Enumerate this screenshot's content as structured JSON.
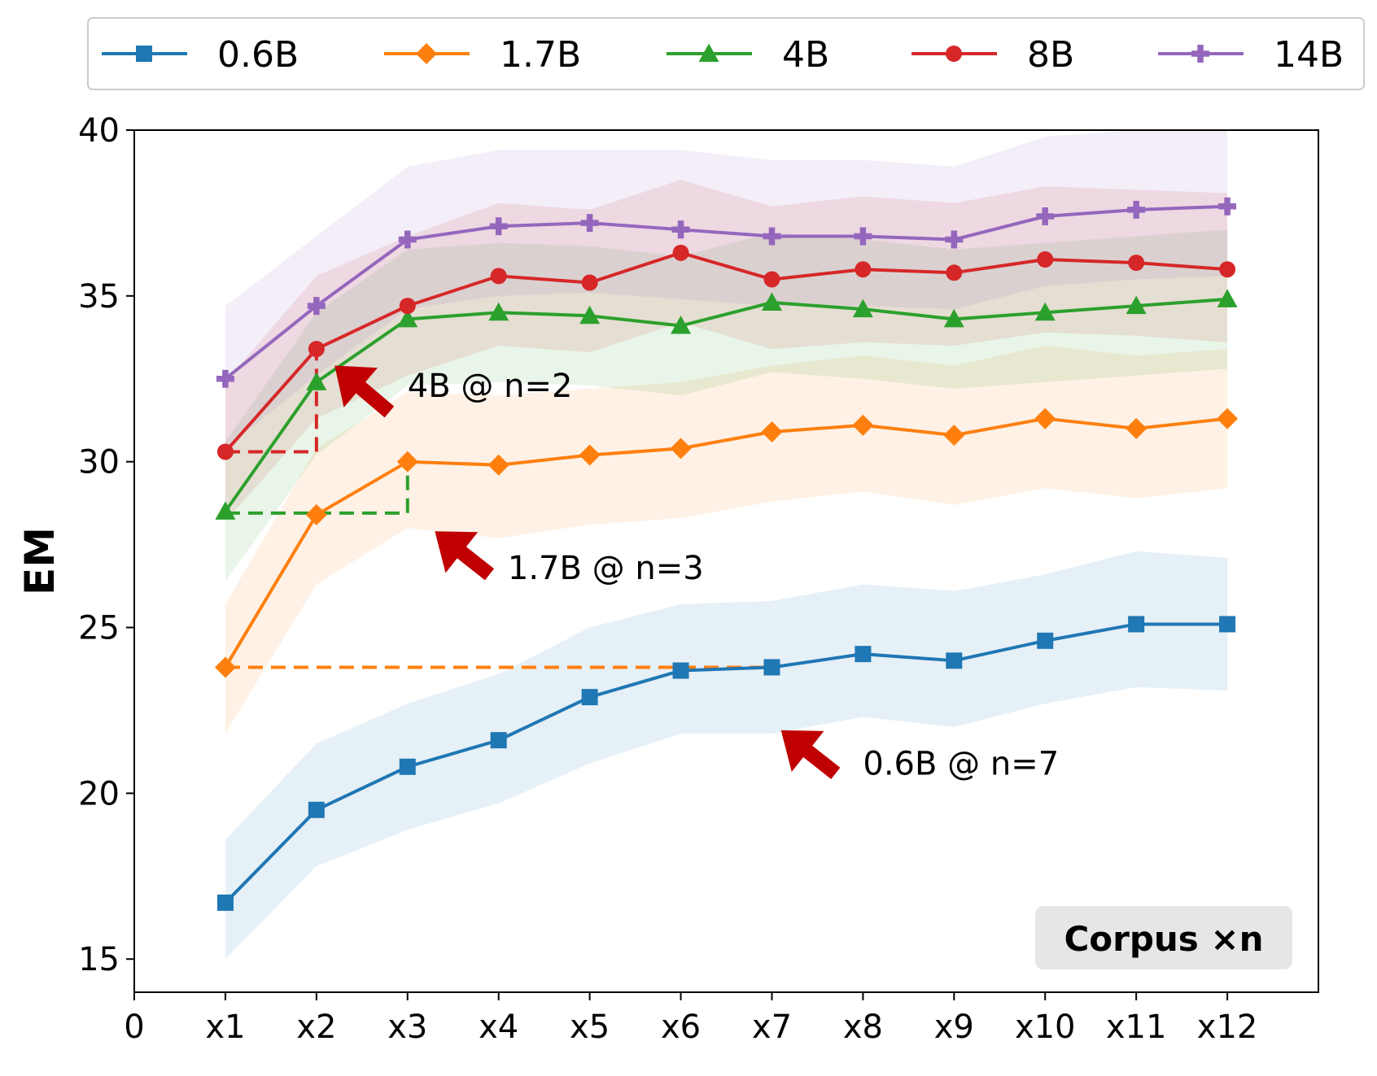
{
  "chart_data": {
    "type": "line",
    "title": "",
    "xlabel": "",
    "ylabel": "EM",
    "x_tick_labels": [
      "0",
      "x1",
      "x2",
      "x3",
      "x4",
      "x5",
      "x6",
      "x7",
      "x8",
      "x9",
      "x10",
      "x11",
      "x12"
    ],
    "x": [
      1,
      2,
      3,
      4,
      5,
      6,
      7,
      8,
      9,
      10,
      11,
      12
    ],
    "xlim": [
      0,
      13
    ],
    "ylim": [
      14,
      40
    ],
    "yticks": [
      15,
      20,
      25,
      30,
      35,
      40
    ],
    "grid": false,
    "legend_position": "top",
    "series": [
      {
        "name": "0.6B",
        "color": "#1f77b4",
        "marker": "square",
        "values": [
          16.7,
          19.5,
          20.8,
          21.6,
          22.9,
          23.7,
          23.8,
          24.2,
          24.0,
          24.6,
          25.1,
          25.1
        ],
        "lower": [
          15.0,
          17.8,
          18.9,
          19.7,
          20.9,
          21.8,
          21.8,
          22.3,
          22.0,
          22.7,
          23.2,
          23.1
        ],
        "upper": [
          18.6,
          21.5,
          22.7,
          23.6,
          25.0,
          25.7,
          25.8,
          26.3,
          26.1,
          26.6,
          27.3,
          27.1
        ]
      },
      {
        "name": "1.7B",
        "color": "#ff7f0e",
        "marker": "diamond",
        "values": [
          23.8,
          28.4,
          30.0,
          29.9,
          30.2,
          30.4,
          30.9,
          31.1,
          30.8,
          31.3,
          31.0,
          31.3
        ],
        "lower": [
          21.8,
          26.3,
          28.0,
          27.7,
          28.1,
          28.3,
          28.8,
          29.1,
          28.7,
          29.2,
          28.9,
          29.2
        ],
        "upper": [
          25.7,
          30.4,
          32.1,
          32.0,
          32.2,
          32.4,
          32.9,
          33.2,
          32.9,
          33.5,
          33.2,
          33.4
        ]
      },
      {
        "name": "4B",
        "color": "#2ca02c",
        "marker": "triangle",
        "values": [
          28.5,
          32.4,
          34.3,
          34.5,
          34.4,
          34.1,
          34.8,
          34.6,
          34.3,
          34.5,
          34.7,
          34.9
        ],
        "lower": [
          26.4,
          30.2,
          32.3,
          32.4,
          32.3,
          32.0,
          32.7,
          32.5,
          32.2,
          32.4,
          32.6,
          32.8
        ],
        "upper": [
          30.6,
          34.5,
          36.4,
          36.6,
          36.5,
          36.2,
          36.9,
          36.7,
          36.4,
          36.6,
          36.8,
          37.0
        ]
      },
      {
        "name": "8B",
        "color": "#d62728",
        "marker": "circle",
        "values": [
          30.3,
          33.4,
          34.7,
          35.6,
          35.4,
          36.3,
          35.5,
          35.8,
          35.7,
          36.1,
          36.0,
          35.8
        ],
        "lower": [
          28.2,
          31.3,
          32.6,
          33.5,
          33.3,
          34.2,
          33.4,
          33.6,
          33.5,
          33.9,
          33.8,
          33.6
        ],
        "upper": [
          32.4,
          35.6,
          36.8,
          37.8,
          37.6,
          38.5,
          37.7,
          38.0,
          37.8,
          38.3,
          38.2,
          38.1
        ]
      },
      {
        "name": "14B",
        "color": "#9467bd",
        "marker": "plus",
        "values": [
          32.5,
          34.7,
          36.7,
          37.1,
          37.2,
          37.0,
          36.8,
          36.8,
          36.7,
          37.4,
          37.6,
          37.7
        ],
        "lower": [
          30.4,
          32.6,
          34.6,
          35.0,
          35.1,
          34.9,
          34.7,
          34.7,
          34.6,
          35.3,
          35.5,
          35.6
        ],
        "upper": [
          34.7,
          36.8,
          38.9,
          39.4,
          39.4,
          39.4,
          39.1,
          39.1,
          38.9,
          39.8,
          40.0,
          40.0
        ]
      }
    ],
    "reference_lines": [
      {
        "color": "#ff7f0e",
        "points": [
          [
            1,
            23.8
          ],
          [
            7,
            23.8
          ]
        ]
      },
      {
        "color": "#2ca02c",
        "points": [
          [
            1,
            28.45
          ],
          [
            3,
            28.45
          ],
          [
            3,
            30.0
          ]
        ]
      },
      {
        "color": "#d62728",
        "points": [
          [
            1,
            30.3
          ],
          [
            2,
            30.3
          ],
          [
            2,
            33.4
          ]
        ]
      }
    ],
    "annotations": [
      {
        "text": "4B @ n=2",
        "arrow_tip": [
          2.2,
          32.9
        ],
        "arrow_tail": [
          2.8,
          31.5
        ],
        "text_at": [
          3.0,
          32.3
        ]
      },
      {
        "text": "1.7B @ n=3",
        "arrow_tip": [
          3.3,
          27.9
        ],
        "arrow_tail": [
          3.9,
          26.6
        ],
        "text_at": [
          4.1,
          26.8
        ]
      },
      {
        "text": "0.6B @ n=7",
        "arrow_tip": [
          7.1,
          21.9
        ],
        "arrow_tail": [
          7.7,
          20.6
        ],
        "text_at": [
          8.0,
          20.9
        ]
      }
    ],
    "corner_label": "Corpus ×n"
  }
}
